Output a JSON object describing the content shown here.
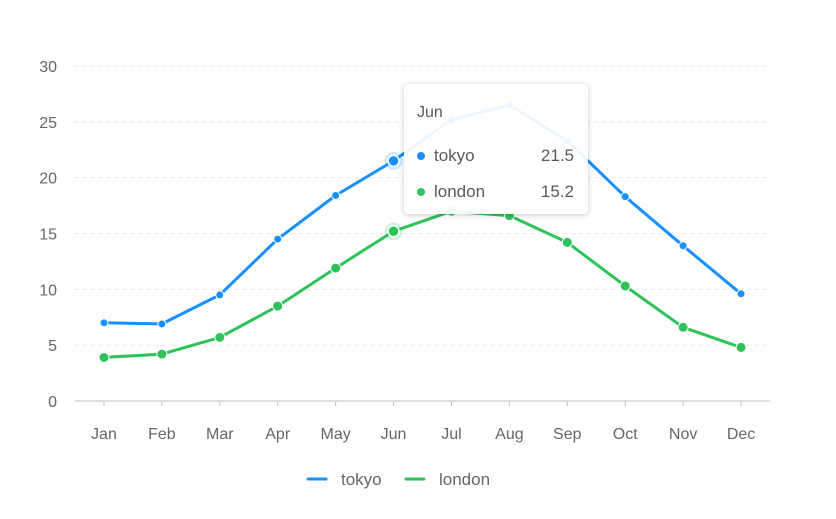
{
  "chart_data": {
    "type": "line",
    "categories": [
      "Jan",
      "Feb",
      "Mar",
      "Apr",
      "May",
      "Jun",
      "Jul",
      "Aug",
      "Sep",
      "Oct",
      "Nov",
      "Dec"
    ],
    "series": [
      {
        "name": "tokyo",
        "color": "#1890ff",
        "values": [
          7.0,
          6.9,
          9.5,
          14.5,
          18.4,
          21.5,
          25.2,
          26.5,
          23.3,
          18.3,
          13.9,
          9.6
        ]
      },
      {
        "name": "london",
        "color": "#2fc25b",
        "values": [
          3.9,
          4.2,
          5.7,
          8.5,
          11.9,
          15.2,
          17.0,
          16.6,
          14.2,
          10.3,
          6.6,
          4.8
        ]
      }
    ],
    "yticks": [
      0,
      5,
      10,
      15,
      20,
      25,
      30
    ],
    "ylim": [
      0,
      30
    ],
    "grid": true,
    "legend_position": "bottom"
  },
  "tooltip": {
    "title": "Jun",
    "category_index": 5,
    "rows": [
      {
        "name": "tokyo",
        "value": "21.5",
        "color": "#1890ff"
      },
      {
        "name": "london",
        "value": "15.2",
        "color": "#2fc25b"
      }
    ]
  }
}
